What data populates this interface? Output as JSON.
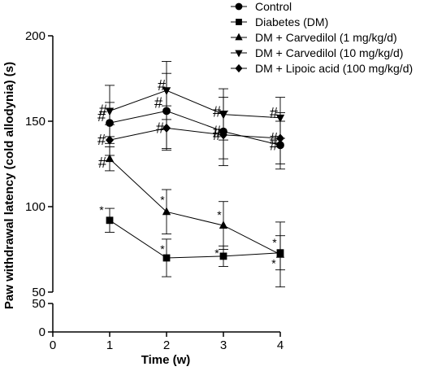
{
  "chart_data": {
    "type": "line",
    "xlabel": "Time (w)",
    "ylabel": "Paw withdrawal latency (cold allodynia) (s)",
    "x_ticks": [
      "0",
      "1",
      "2",
      "3",
      "4"
    ],
    "y_ticks_upper": [
      "50",
      "100",
      "150",
      "200"
    ],
    "y_ticks_lower": [
      "0",
      "50"
    ],
    "xlim": [
      0,
      4
    ],
    "ylim_upper": [
      50,
      200
    ],
    "ylim_lower": [
      0,
      50
    ],
    "axis_break": true,
    "grid": false,
    "legend_position": "top-right",
    "x": [
      1,
      2,
      3,
      4
    ],
    "series": [
      {
        "name": "Control",
        "marker": "circle",
        "values": [
          149,
          156,
          144,
          136
        ],
        "errors": [
          12,
          22,
          20,
          14
        ],
        "labels": [
          "#",
          "#",
          "#",
          "#"
        ]
      },
      {
        "name": "Diabetes (DM)",
        "marker": "square",
        "values": [
          92,
          70,
          71,
          73
        ],
        "errors": [
          7,
          11,
          6,
          10
        ],
        "labels": [
          "*",
          "*",
          "*",
          "*"
        ]
      },
      {
        "name": "DM + Carvedilol (1 mg/kg/d)",
        "marker": "triangle-up",
        "values": [
          128,
          97,
          89,
          72
        ],
        "errors": [
          7,
          13,
          14,
          19
        ],
        "labels": [
          "#",
          "*",
          "*",
          "*"
        ]
      },
      {
        "name": "DM + Carvedilol (10 mg/kg/d)",
        "marker": "triangle-down",
        "values": [
          156,
          168,
          154,
          152
        ],
        "errors": [
          15,
          17,
          15,
          12
        ],
        "labels": [
          "#",
          "#",
          "#",
          "#"
        ]
      },
      {
        "name": "DM + Lipoic acid (100 mg/kg/d)",
        "marker": "diamond",
        "values": [
          139,
          146,
          142,
          140
        ],
        "errors": [
          9,
          13,
          14,
          15
        ],
        "labels": [
          "#",
          "#",
          "#",
          "#"
        ]
      }
    ]
  }
}
